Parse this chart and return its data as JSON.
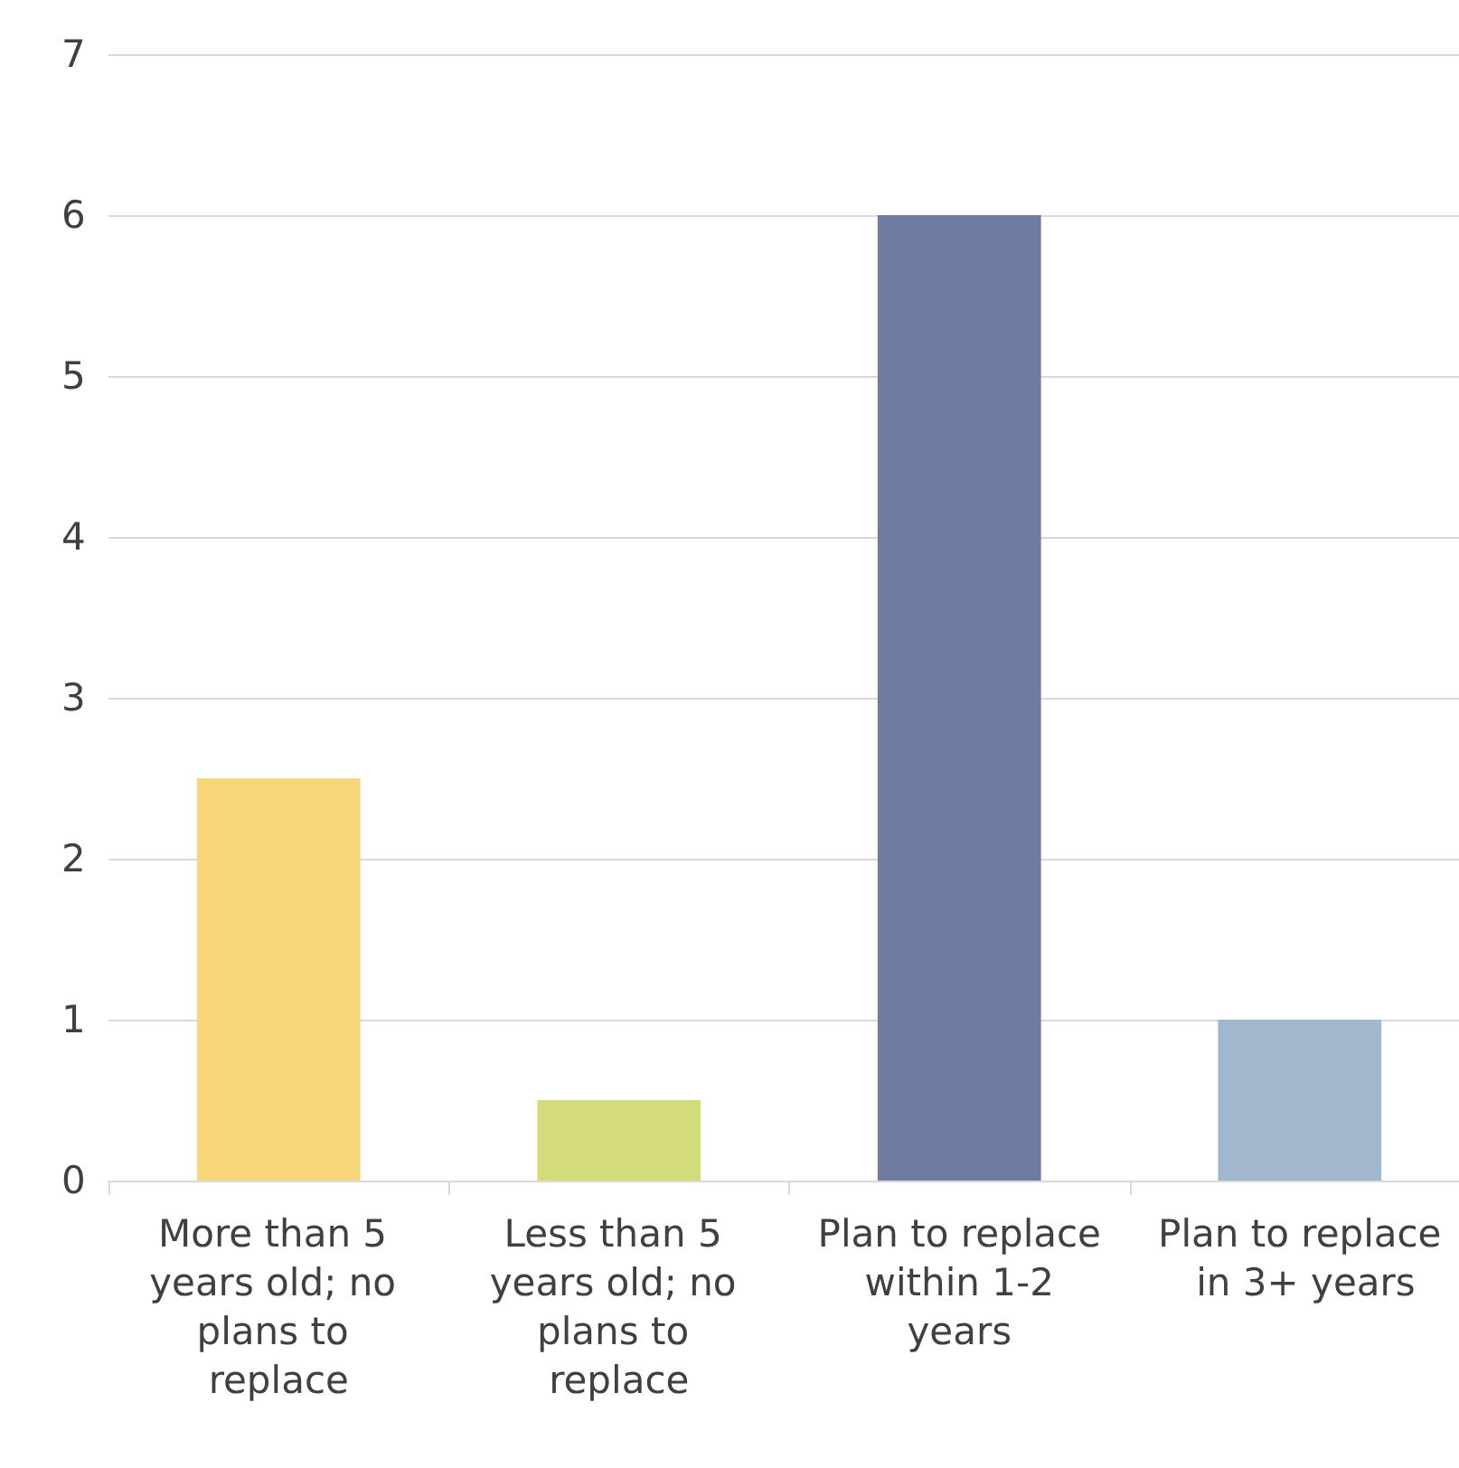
{
  "chart_data": {
    "type": "bar",
    "categories": [
      "More than 5 years old; no plans to replace",
      "Less than 5 years old; no plans to replace",
      "Plan to replace within 1-2 years",
      "Plan to replace in 3+ years"
    ],
    "values": [
      2.5,
      0.5,
      6,
      1
    ],
    "colors": [
      "#f8d77a",
      "#d4dc7a",
      "#707ba2",
      "#a1b7cd"
    ],
    "ylim": [
      0,
      7
    ],
    "yticks": [
      0,
      1,
      2,
      3,
      4,
      5,
      6,
      7
    ],
    "grid": "y"
  }
}
